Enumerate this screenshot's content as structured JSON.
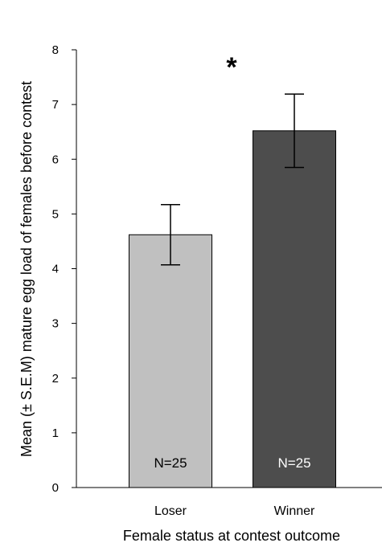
{
  "chart_data": {
    "type": "bar",
    "categories": [
      "Loser",
      "Winner"
    ],
    "values": [
      4.62,
      6.52
    ],
    "errors": [
      0.55,
      0.67
    ],
    "bar_labels": [
      "N=25",
      "N=25"
    ],
    "bar_colors": [
      "#c0c0c0",
      "#4d4d4d"
    ],
    "bar_label_colors": [
      "#000000",
      "#ffffff"
    ],
    "xlabel": "Female status at contest outcome",
    "ylabel": "Mean (± S.E.M) mature egg load of females before contest",
    "ylim": [
      0,
      8
    ],
    "yticks": [
      "0",
      "1",
      "2",
      "3",
      "4",
      "5",
      "6",
      "7",
      "8"
    ],
    "significance": "*",
    "grid": false,
    "legend": "none"
  }
}
